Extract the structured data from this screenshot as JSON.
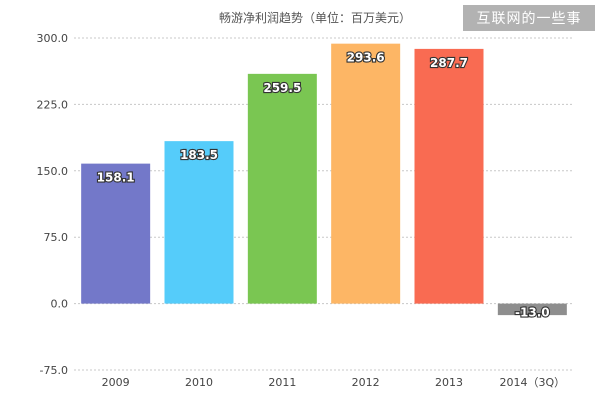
{
  "watermark": "互联网的一些事",
  "chart_data": {
    "type": "bar",
    "title": "畅游净利润趋势（单位：百万美元）",
    "xlabel": "",
    "ylabel": "",
    "categories": [
      "2009",
      "2010",
      "2011",
      "2012",
      "2013",
      "2014（3Q）"
    ],
    "values": [
      158.1,
      183.5,
      259.5,
      293.6,
      287.7,
      -13.0
    ],
    "value_labels": [
      "158.1",
      "183.5",
      "259.5",
      "293.6",
      "287.7",
      "-13.0"
    ],
    "colors": [
      "#7378c9",
      "#55ccfa",
      "#7ac652",
      "#fdb665",
      "#f96b52",
      "#8e8e8e"
    ],
    "yticks": [
      -75,
      0,
      75,
      150,
      225,
      300
    ],
    "ytick_labels": [
      "-75.0",
      "0.0",
      "75.0",
      "150.0",
      "225.0",
      "300.0"
    ],
    "ylim": [
      -75,
      300
    ],
    "grid": true,
    "legend": "none"
  }
}
